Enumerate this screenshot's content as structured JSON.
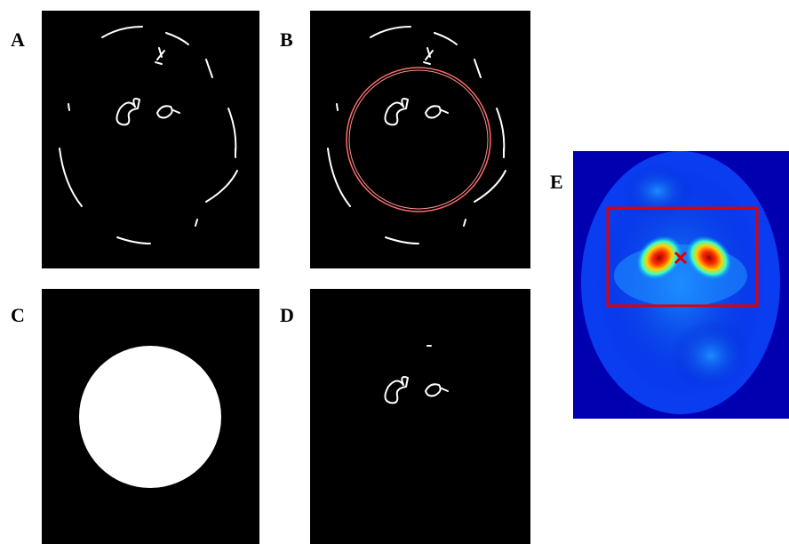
{
  "panels": [
    {
      "label": "A"
    },
    {
      "label": "B"
    },
    {
      "label": "C"
    },
    {
      "label": "D"
    },
    {
      "label": "E"
    }
  ]
}
